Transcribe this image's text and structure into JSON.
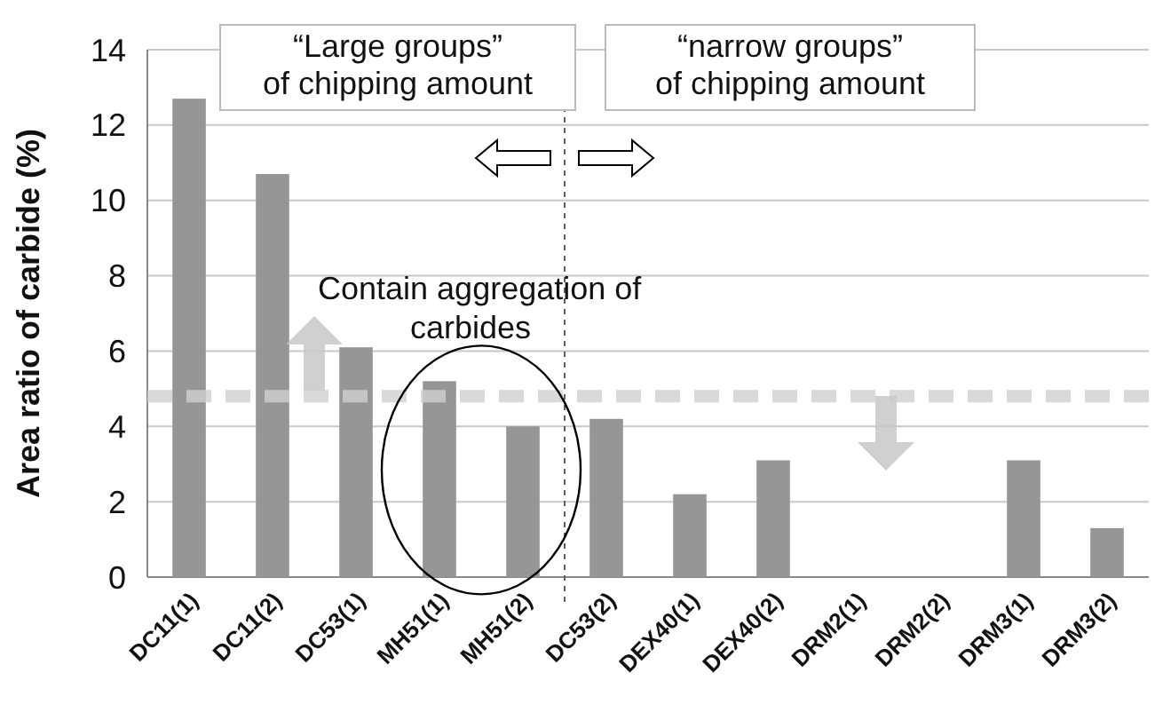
{
  "chart_data": {
    "type": "bar",
    "ylabel": "Area ratio of carbide (%)",
    "categories": [
      "DC11(1)",
      "DC11(2)",
      "DC53(1)",
      "MH51(1)",
      "MH51(2)",
      "DC53(2)",
      "DEX40(1)",
      "DEX40(2)",
      "DRM2(1)",
      "DRM2(2)",
      "DRM3(1)",
      "DRM3(2)"
    ],
    "values": [
      12.7,
      10.7,
      6.1,
      5.2,
      4.0,
      4.2,
      2.2,
      3.1,
      0,
      0,
      3.1,
      1.3
    ],
    "color": "#969696",
    "ylim": [
      0,
      14
    ],
    "yticks": [
      0,
      2,
      4,
      6,
      8,
      10,
      12,
      14
    ],
    "grid": "y",
    "ref_lines": [
      {
        "axis": "y",
        "value": 4.8,
        "color": "#d0d0d0",
        "line_style": "dashed"
      }
    ],
    "annotations": [
      "“Large groups”\nof chipping amount",
      "“narrow groups”\nof chipping amount",
      {
        "text": "Contain aggregation of\ncarbides",
        "x": "MH51(1)",
        "y": 5.2
      }
    ]
  }
}
